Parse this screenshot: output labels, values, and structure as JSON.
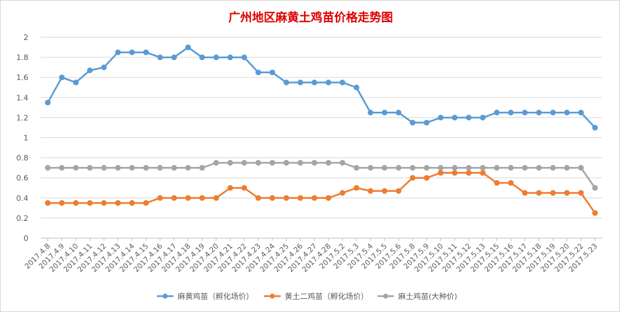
{
  "chart_data": {
    "type": "line",
    "title": "广州地区麻黄土鸡苗价格走势图",
    "xlabel": "",
    "ylabel": "",
    "ylim": [
      0,
      2
    ],
    "yticks": [
      "0",
      "0.2",
      "0.4",
      "0.6",
      "0.8",
      "1",
      "1.2",
      "1.4",
      "1.6",
      "1.8",
      "2"
    ],
    "grid": true,
    "legend_position": "bottom",
    "categories": [
      "2017.4.8",
      "2017.4.9",
      "2017.4.10",
      "2017.4.11",
      "2017.4.12",
      "2017.4.13",
      "2017.4.14",
      "2017.4.15",
      "2017.4.16",
      "2017.4.17",
      "2017.4.18",
      "2017.4.19",
      "2017.4.20",
      "2017.4.21",
      "2017.4.22",
      "2017.4.23",
      "2017.4.24",
      "2017.4.25",
      "2017.4.26",
      "2017.4.27",
      "2017.4.28",
      "2017.5.2",
      "2017.5.3",
      "2017.5.4",
      "2017.5.5",
      "2017.5.6",
      "2017.5.8",
      "2017.5.9",
      "2017.5.10",
      "2017.5.11",
      "2017.5.12",
      "2017.5.13",
      "2017.5.15",
      "2017.5.16",
      "2017.5.17",
      "2017.5.18",
      "2017.5.19",
      "2017.5.20",
      "2017.5.22",
      "2017.5.23"
    ],
    "series": [
      {
        "name": "麻黄鸡苗（孵化场价）",
        "color": "#5b9bd5",
        "values": [
          1.35,
          1.6,
          1.55,
          1.67,
          1.7,
          1.85,
          1.85,
          1.85,
          1.8,
          1.8,
          1.9,
          1.8,
          1.8,
          1.8,
          1.8,
          1.65,
          1.65,
          1.55,
          1.55,
          1.55,
          1.55,
          1.55,
          1.5,
          1.25,
          1.25,
          1.25,
          1.15,
          1.15,
          1.2,
          1.2,
          1.2,
          1.2,
          1.25,
          1.25,
          1.25,
          1.25,
          1.25,
          1.25,
          1.25,
          1.1
        ]
      },
      {
        "name": "黄土二鸡苗（孵化场价）",
        "color": "#ed7d31",
        "values": [
          0.35,
          0.35,
          0.35,
          0.35,
          0.35,
          0.35,
          0.35,
          0.35,
          0.4,
          0.4,
          0.4,
          0.4,
          0.4,
          0.5,
          0.5,
          0.4,
          0.4,
          0.4,
          0.4,
          0.4,
          0.4,
          0.45,
          0.5,
          0.47,
          0.47,
          0.47,
          0.6,
          0.6,
          0.65,
          0.65,
          0.65,
          0.65,
          0.55,
          0.55,
          0.45,
          0.45,
          0.45,
          0.45,
          0.45,
          0.25
        ]
      },
      {
        "name": "麻土鸡苗(大种价)",
        "color": "#a5a5a5",
        "values": [
          0.7,
          0.7,
          0.7,
          0.7,
          0.7,
          0.7,
          0.7,
          0.7,
          0.7,
          0.7,
          0.7,
          0.7,
          0.75,
          0.75,
          0.75,
          0.75,
          0.75,
          0.75,
          0.75,
          0.75,
          0.75,
          0.75,
          0.7,
          0.7,
          0.7,
          0.7,
          0.7,
          0.7,
          0.7,
          0.7,
          0.7,
          0.7,
          0.7,
          0.7,
          0.7,
          0.7,
          0.7,
          0.7,
          0.7,
          0.5
        ]
      }
    ]
  }
}
